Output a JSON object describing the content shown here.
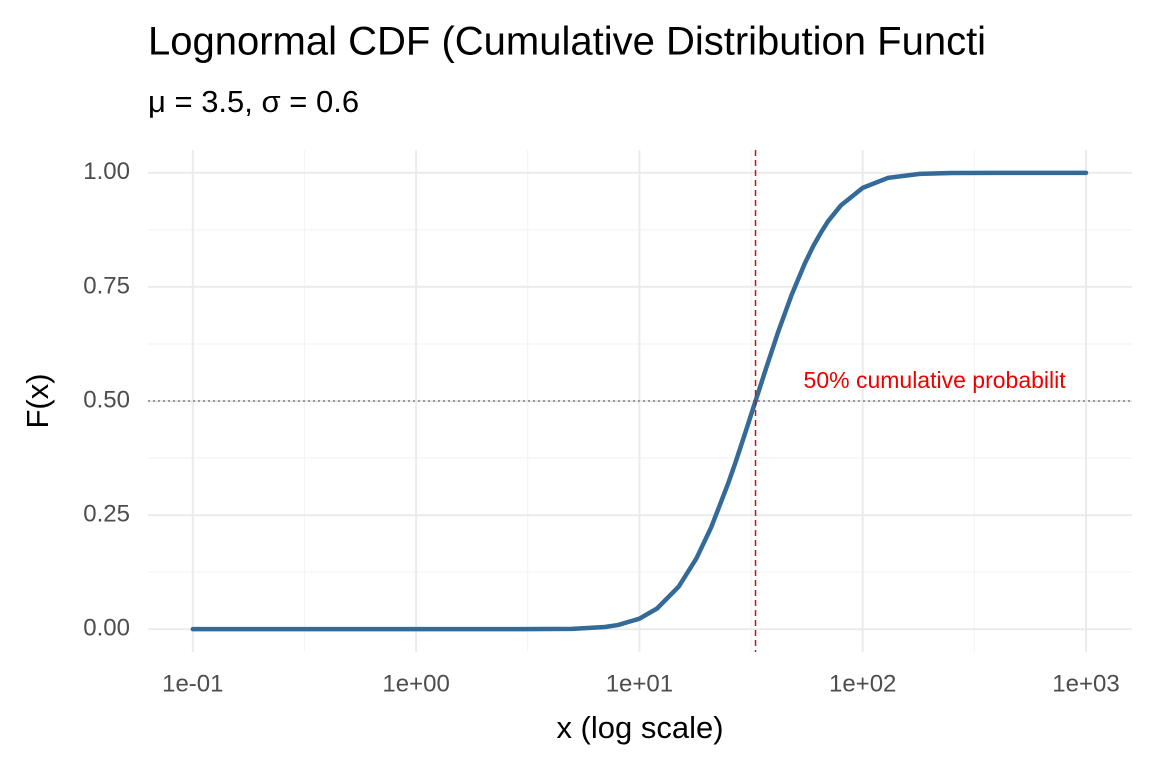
{
  "chart_data": {
    "type": "line",
    "title": "Lognormal CDF (Cumulative Distribution Functi",
    "subtitle": "μ = 3.5,  σ = 0.6",
    "x_label": "x (log scale)",
    "y_label": "F(x)",
    "x_log": true,
    "grid": true,
    "color": "#336a98",
    "x": [
      0.1,
      1,
      3,
      5,
      7,
      8,
      10,
      12,
      15,
      18,
      21,
      25,
      27,
      30,
      33.12,
      37,
      42,
      48,
      55,
      60,
      65,
      70,
      80,
      100,
      130,
      180,
      250,
      400,
      1000
    ],
    "values": [
      0,
      0,
      3e-05,
      0.0008,
      0.0048,
      0.009,
      0.023,
      0.0453,
      0.0934,
      0.155,
      0.224,
      0.32,
      0.367,
      0.435,
      0.5,
      0.573,
      0.654,
      0.732,
      0.801,
      0.839,
      0.869,
      0.894,
      0.929,
      0.967,
      0.989,
      0.9976,
      0.9996,
      1,
      1
    ],
    "xlim": [
      0.063,
      1607
    ],
    "ylim": [
      -0.05,
      1.05
    ],
    "xticks": [
      {
        "value": 0.1,
        "label": "1e-01"
      },
      {
        "value": 1,
        "label": "1e+00"
      },
      {
        "value": 10,
        "label": "1e+01"
      },
      {
        "value": 100,
        "label": "1e+02"
      },
      {
        "value": 1000,
        "label": "1e+03"
      }
    ],
    "x_minor_ticks": [
      0.316,
      3.16,
      31.6,
      316
    ],
    "yticks": [
      {
        "value": 0,
        "label": "0.00"
      },
      {
        "value": 0.25,
        "label": "0.25"
      },
      {
        "value": 0.5,
        "label": "0.50"
      },
      {
        "value": 0.75,
        "label": "0.75"
      },
      {
        "value": 1,
        "label": "1.00"
      }
    ],
    "y_minor_ticks": [
      0.125,
      0.375,
      0.625,
      0.875
    ],
    "vline": {
      "value": 33.12,
      "color": "#cc1111"
    },
    "hline": {
      "value": 0.5,
      "color": "#808080"
    },
    "annotation": {
      "text": "50% cumulative probabilit",
      "color": "#ee0000"
    }
  }
}
